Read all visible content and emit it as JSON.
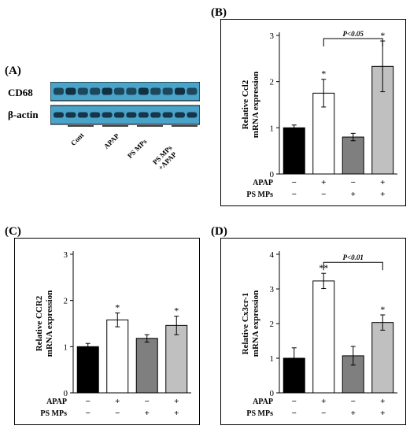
{
  "colors": {
    "cont": "#000000",
    "apap": "#ffffff",
    "ps_mps": "#7f7f7f",
    "ps_mps_apap": "#c0c0c0",
    "blot_bg": "#4aa3c9",
    "band": "#0e2a3a"
  },
  "panelA": {
    "letter": "(A)",
    "rows": [
      "CD68",
      "β-actin"
    ],
    "lanes": [
      "Cont",
      "APAP",
      "PS MPs",
      "PS MPs\n+APAP"
    ]
  },
  "chart_data": [
    {
      "panel": "(B)",
      "type": "bar",
      "ylabel_line1": "Relative Ccl2",
      "ylabel_line2": "mRNA expression",
      "ylim": [
        0,
        3
      ],
      "yticks": [
        "0",
        "1",
        "2",
        "3"
      ],
      "values": [
        1.0,
        1.75,
        0.8,
        2.33
      ],
      "errors": [
        0.06,
        0.3,
        0.08,
        0.55
      ],
      "stars": [
        "",
        "*",
        "",
        "*"
      ],
      "bracket": {
        "from": 1,
        "to": 3,
        "label": "P<0.05"
      },
      "rows": [
        {
          "label": "APAP",
          "signs": [
            "−",
            "+",
            "−",
            "+"
          ]
        },
        {
          "label": "PS MPs",
          "signs": [
            "−",
            "−",
            "+",
            "+"
          ]
        }
      ]
    },
    {
      "panel": "(C)",
      "type": "bar",
      "ylabel_line1": "Relative CCR2",
      "ylabel_line2": "mRNA expression",
      "ylim": [
        0,
        3
      ],
      "yticks": [
        "0",
        "1",
        "2",
        "3"
      ],
      "values": [
        1.0,
        1.58,
        1.18,
        1.46
      ],
      "errors": [
        0.07,
        0.15,
        0.08,
        0.2
      ],
      "stars": [
        "",
        "*",
        "",
        "*"
      ],
      "bracket": null,
      "rows": [
        {
          "label": "APAP",
          "signs": [
            "−",
            "+",
            "−",
            "+"
          ]
        },
        {
          "label": "PS MPs",
          "signs": [
            "−",
            "−",
            "+",
            "+"
          ]
        }
      ]
    },
    {
      "panel": "(D)",
      "type": "bar",
      "ylabel_line1": "Relative Cx3cr-1",
      "ylabel_line2": "mRNA expression",
      "ylim": [
        0,
        4
      ],
      "yticks": [
        "0",
        "1",
        "2",
        "3",
        "4"
      ],
      "values": [
        1.0,
        3.23,
        1.07,
        2.03
      ],
      "errors": [
        0.3,
        0.22,
        0.27,
        0.22
      ],
      "stars": [
        "",
        "**",
        "",
        "*"
      ],
      "bracket": {
        "from": 1,
        "to": 3,
        "label": "P<0.01"
      },
      "rows": [
        {
          "label": "APAP",
          "signs": [
            "−",
            "+",
            "−",
            "+"
          ]
        },
        {
          "label": "PS MPs",
          "signs": [
            "−",
            "−",
            "+",
            "+"
          ]
        }
      ]
    }
  ]
}
